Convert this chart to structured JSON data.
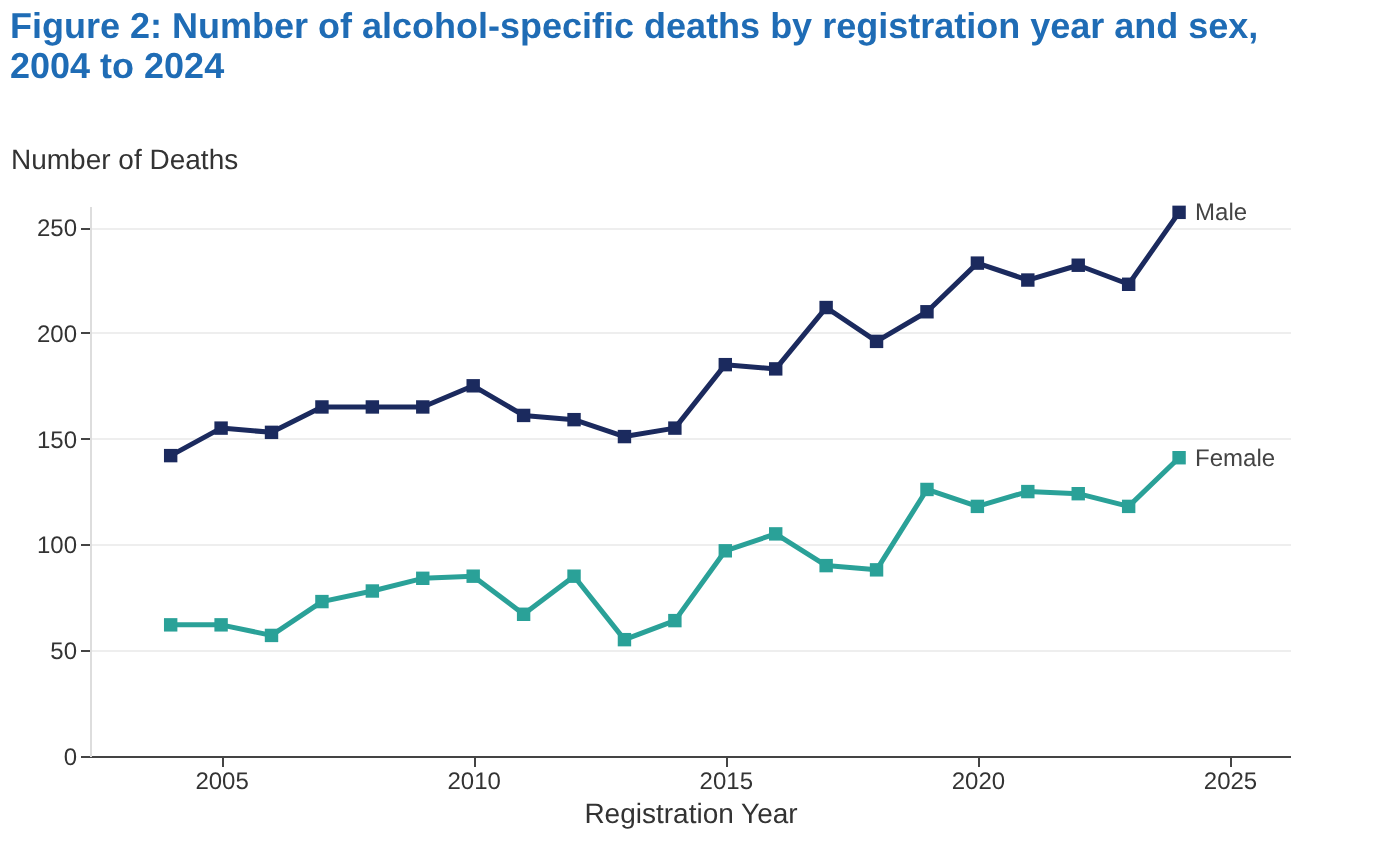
{
  "chart_data": {
    "type": "line",
    "title": "Figure 2: Number of alcohol-specific deaths by registration year and sex, 2004 to 2024",
    "xlabel": "Registration Year",
    "ylabel": "Number of Deaths",
    "x": [
      2004,
      2005,
      2006,
      2007,
      2008,
      2009,
      2010,
      2011,
      2012,
      2013,
      2014,
      2015,
      2016,
      2017,
      2018,
      2019,
      2020,
      2021,
      2022,
      2023,
      2024
    ],
    "series": [
      {
        "name": "Male",
        "color": "#1b2a5e",
        "values": [
          142,
          155,
          153,
          165,
          165,
          165,
          175,
          161,
          159,
          151,
          155,
          185,
          183,
          212,
          196,
          210,
          233,
          225,
          232,
          223,
          257
        ]
      },
      {
        "name": "Female",
        "color": "#2aa198",
        "values": [
          62,
          62,
          57,
          73,
          78,
          84,
          85,
          67,
          85,
          55,
          64,
          97,
          105,
          90,
          88,
          126,
          118,
          125,
          124,
          118,
          141
        ]
      }
    ],
    "xlim": [
      2002.4,
      2026.2
    ],
    "xticks": [
      2005,
      2010,
      2015,
      2020,
      2025
    ],
    "ylim": [
      0,
      260
    ],
    "yticks": [
      0,
      50,
      100,
      150,
      200,
      250
    ],
    "grid": "y",
    "legend": false,
    "marker": "square",
    "line_style": "solid"
  }
}
